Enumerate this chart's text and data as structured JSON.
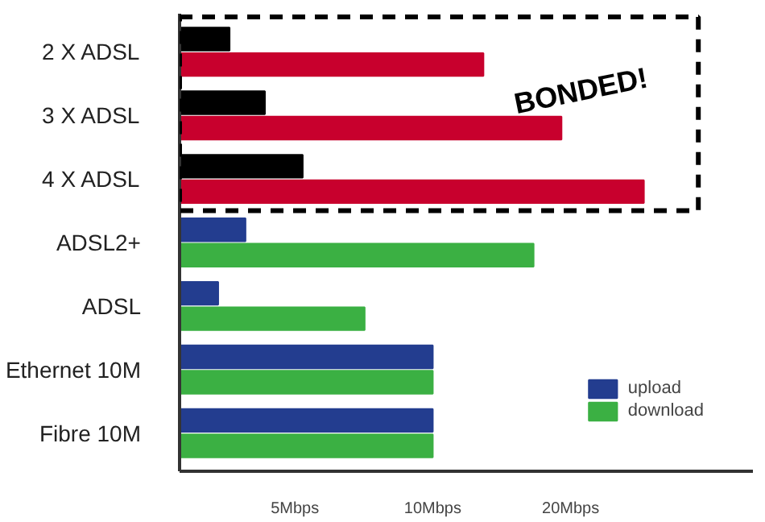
{
  "chart_data": {
    "type": "bar",
    "orientation": "horizontal",
    "categories": [
      "2 X ADSL",
      "3 X ADSL",
      "4 X ADSL",
      "ADSL2+",
      "ADSL",
      "Ethernet 10M",
      "Fibre 10M"
    ],
    "series": [
      {
        "name": "upload",
        "color": "#233d8f",
        "colors": [
          "#000000",
          "#000000",
          "#000000",
          "#233d8f",
          "#233d8f",
          "#233d8f",
          "#233d8f"
        ],
        "values": [
          3.6,
          4.3,
          5.2,
          3.9,
          3.4,
          10,
          10
        ]
      },
      {
        "name": "download",
        "color": "#3bb043",
        "colors": [
          "#c8002d",
          "#c8002d",
          "#c8002d",
          "#3bb043",
          "#3bb043",
          "#3bb043",
          "#3bb043"
        ],
        "values": [
          12.9,
          19.1,
          28.9,
          16.6,
          7.1,
          10,
          10
        ]
      }
    ],
    "xlim": [
      2.8,
      50
    ],
    "log": "x",
    "xticks": [
      {
        "value": 5,
        "label": "5Mbps"
      },
      {
        "value": 10,
        "label": "10Mbps"
      },
      {
        "value": 20,
        "label": "20Mbps"
      }
    ],
    "annotations": [
      "BONDED!"
    ],
    "legend": "bottom right",
    "grid": false
  }
}
